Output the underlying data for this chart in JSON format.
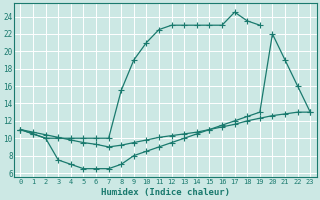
{
  "xlabel": "Humidex (Indice chaleur)",
  "bg_color": "#cce8e4",
  "line_color": "#1a7a6e",
  "grid_color": "#b8d8d4",
  "xlim": [
    -0.5,
    23.5
  ],
  "ylim": [
    5.5,
    25.5
  ],
  "yticks": [
    6,
    8,
    10,
    12,
    14,
    16,
    18,
    20,
    22,
    24
  ],
  "xticks": [
    0,
    1,
    2,
    3,
    4,
    5,
    6,
    7,
    8,
    9,
    10,
    11,
    12,
    13,
    14,
    15,
    16,
    17,
    18,
    19,
    20,
    21,
    22,
    23
  ],
  "line1_x": [
    0,
    1,
    2,
    3,
    4,
    5,
    6,
    7,
    8,
    9,
    10,
    11,
    12,
    13,
    14,
    15,
    16,
    17,
    18,
    19
  ],
  "line1_y": [
    11,
    10.5,
    10,
    10,
    10,
    10,
    10,
    10,
    15.5,
    19,
    21,
    22.5,
    23,
    23,
    23,
    23,
    23,
    24.5,
    23.5,
    23
  ],
  "line2_x": [
    0,
    1,
    2,
    3,
    4,
    5,
    6,
    7,
    8,
    9,
    10,
    11,
    12,
    13,
    14,
    15,
    16,
    17,
    18,
    19,
    20,
    21,
    22,
    23
  ],
  "line2_y": [
    11,
    10.7,
    10.4,
    10.1,
    9.8,
    9.5,
    9.3,
    9.0,
    9.2,
    9.5,
    9.8,
    10.1,
    10.3,
    10.5,
    10.7,
    11.0,
    11.3,
    11.6,
    12.0,
    12.3,
    12.6,
    12.8,
    13.0,
    13.0
  ],
  "line3_x": [
    0,
    1,
    2,
    3,
    4,
    5,
    6,
    7,
    8,
    9,
    10,
    11,
    12,
    13,
    14,
    15,
    16,
    17,
    18,
    19,
    20,
    21,
    22,
    23
  ],
  "line3_y": [
    11,
    10.5,
    10,
    7.5,
    7,
    6.5,
    6.5,
    6.5,
    7,
    8,
    8.5,
    9,
    9.5,
    10,
    10.5,
    11,
    11.5,
    12,
    12.5,
    13,
    22,
    19,
    16,
    13
  ]
}
